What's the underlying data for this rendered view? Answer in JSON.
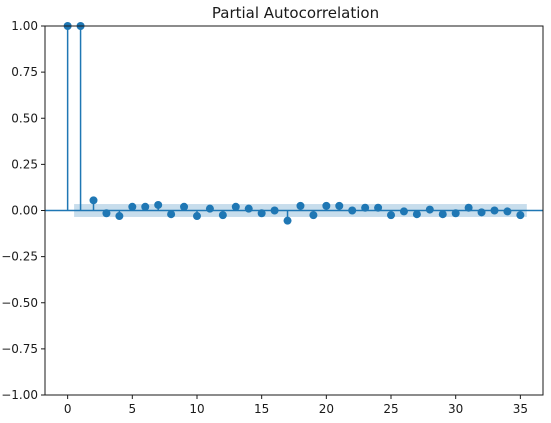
{
  "chart_data": {
    "type": "scatter",
    "title": "Partial Autocorrelation",
    "xlabel": "",
    "ylabel": "",
    "xlim": [
      -1.75,
      36.75
    ],
    "ylim": [
      -1.0,
      1.0
    ],
    "x_ticks": [
      0,
      5,
      10,
      15,
      20,
      25,
      30,
      35
    ],
    "x_tick_labels": [
      "0",
      "5",
      "10",
      "15",
      "20",
      "25",
      "30",
      "35"
    ],
    "y_ticks": [
      1.0,
      0.75,
      0.5,
      0.25,
      0.0,
      -0.25,
      -0.5,
      -0.75,
      -1.0
    ],
    "y_tick_labels": [
      "1.00",
      "0.75",
      "0.50",
      "0.25",
      "0.00",
      "−0.25",
      "−0.50",
      "−0.75",
      "−1.00"
    ],
    "grid": false,
    "legend": "none",
    "confidence_band": {
      "lower": -0.035,
      "upper": 0.035,
      "from_lag": 0.5,
      "to_lag": 35.5
    },
    "lags": [
      0,
      1,
      2,
      3,
      4,
      5,
      6,
      7,
      8,
      9,
      10,
      11,
      12,
      13,
      14,
      15,
      16,
      17,
      18,
      19,
      20,
      21,
      22,
      23,
      24,
      25,
      26,
      27,
      28,
      29,
      30,
      31,
      32,
      33,
      34,
      35
    ],
    "values": [
      1.0,
      1.0,
      0.055,
      -0.015,
      -0.03,
      0.02,
      0.02,
      0.03,
      -0.02,
      0.02,
      -0.03,
      0.01,
      -0.025,
      0.02,
      0.01,
      -0.015,
      0.0,
      -0.055,
      0.025,
      -0.025,
      0.025,
      0.025,
      0.0,
      0.015,
      0.015,
      -0.025,
      -0.005,
      -0.02,
      0.005,
      -0.02,
      -0.015,
      0.015,
      -0.01,
      0.0,
      -0.005,
      -0.025
    ],
    "colors": {
      "marker": "#1f77b4",
      "band": "#1f77b4"
    }
  }
}
